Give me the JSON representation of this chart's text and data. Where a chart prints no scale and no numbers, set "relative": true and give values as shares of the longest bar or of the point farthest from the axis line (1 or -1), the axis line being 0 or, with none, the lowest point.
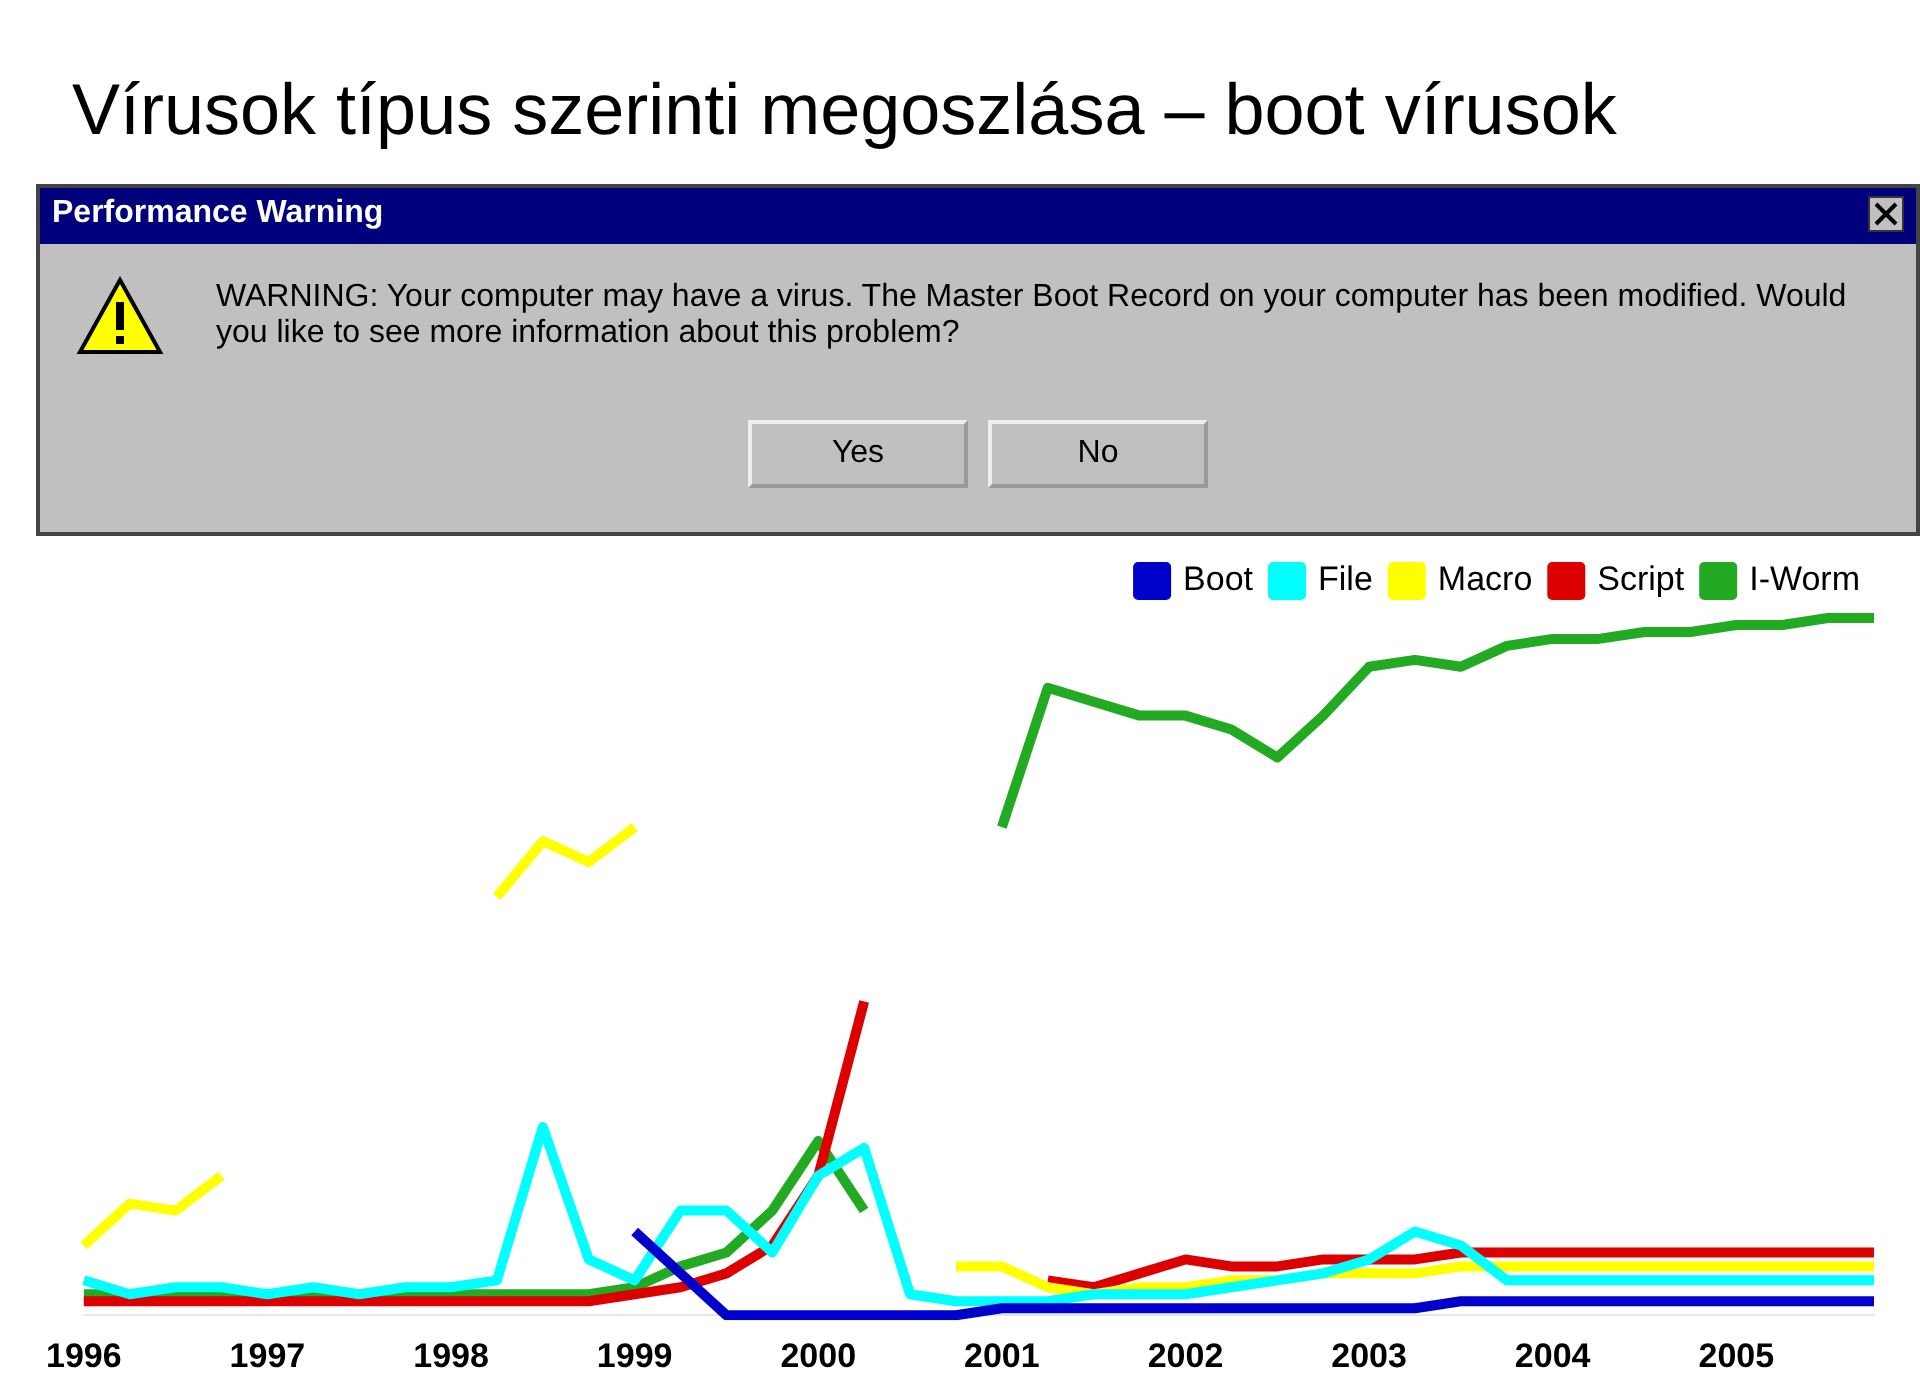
{
  "chart_data": {
    "type": "line",
    "title": "Vírusok típus szerinti megoszlása – boot vírusok",
    "relative": true,
    "legend": "top right",
    "marker": "none",
    "categories": [
      "1996",
      null,
      null,
      null,
      "1997",
      null,
      null,
      null,
      "1998",
      null,
      null,
      null,
      "1999",
      null,
      null,
      null,
      "2000",
      null,
      null,
      null,
      "2001",
      null,
      null,
      null,
      "2002",
      null,
      null,
      null,
      "2003",
      null,
      null,
      null,
      "2004",
      null,
      null,
      null,
      "2005",
      null,
      null,
      null
    ],
    "series": [
      {
        "name": "Boot",
        "color": "#0000cc",
        "values": [
          null,
          null,
          null,
          null,
          null,
          null,
          null,
          null,
          null,
          null,
          null,
          null,
          0.12,
          0.06,
          0,
          0,
          0,
          0,
          0,
          0,
          0.01,
          0.01,
          0.01,
          0.01,
          0.01,
          0.01,
          0.01,
          0.01,
          0.01,
          0.01,
          0.02,
          0.02,
          0.02,
          0.02,
          0.02,
          0.02,
          0.02,
          0.02,
          0.02,
          0.02
        ]
      },
      {
        "name": "File",
        "color": "#00ffff",
        "values": [
          0.05,
          0.03,
          0.04,
          0.04,
          0.03,
          0.04,
          0.03,
          0.04,
          0.04,
          0.05,
          0.27,
          0.08,
          0.05,
          0.15,
          0.15,
          0.09,
          0.2,
          0.24,
          0.03,
          0.02,
          0.02,
          0.02,
          0.03,
          0.03,
          0.03,
          0.04,
          0.05,
          0.06,
          0.08,
          0.12,
          0.1,
          0.05,
          0.05,
          0.05,
          0.05,
          0.05,
          0.05,
          0.05,
          0.05,
          0.05
        ]
      },
      {
        "name": "Macro",
        "color": "#ffff00",
        "values": [
          0.1,
          0.16,
          0.15,
          0.2,
          null,
          null,
          null,
          null,
          null,
          0.6,
          0.68,
          0.65,
          0.7,
          null,
          null,
          null,
          null,
          null,
          null,
          0.07,
          0.07,
          0.04,
          0.03,
          0.04,
          0.04,
          0.05,
          0.05,
          0.06,
          0.06,
          0.06,
          0.07,
          0.07,
          0.07,
          0.07,
          0.07,
          0.07,
          0.07,
          0.07,
          0.07,
          0.07
        ]
      },
      {
        "name": "Script",
        "color": "#dd0000",
        "values": [
          0.02,
          0.02,
          0.02,
          0.02,
          0.02,
          0.02,
          0.02,
          0.02,
          0.02,
          0.02,
          0.02,
          0.02,
          0.03,
          0.04,
          0.06,
          0.1,
          0.2,
          0.45,
          null,
          null,
          null,
          0.05,
          0.04,
          0.06,
          0.08,
          0.07,
          0.07,
          0.08,
          0.08,
          0.08,
          0.09,
          0.09,
          0.09,
          0.09,
          0.09,
          0.09,
          0.09,
          0.09,
          0.09,
          0.09
        ]
      },
      {
        "name": "I-Worm",
        "color": "#22aa22",
        "values": [
          0.03,
          0.03,
          0.03,
          0.03,
          0.03,
          0.03,
          0.03,
          0.03,
          0.03,
          0.03,
          0.03,
          0.03,
          0.04,
          0.07,
          0.09,
          0.15,
          0.25,
          0.15,
          null,
          null,
          0.7,
          0.9,
          0.88,
          0.86,
          0.86,
          0.84,
          0.8,
          0.86,
          0.93,
          0.94,
          0.93,
          0.96,
          0.97,
          0.97,
          0.98,
          0.98,
          0.99,
          0.99,
          1,
          1
        ]
      }
    ],
    "annotations": [
      "Performance Warning",
      "WARNING: Your computer may have a virus. The Master Boot Record on your computer has been modified. Would you like to see more information about this problem?",
      "Yes",
      "No"
    ]
  }
}
